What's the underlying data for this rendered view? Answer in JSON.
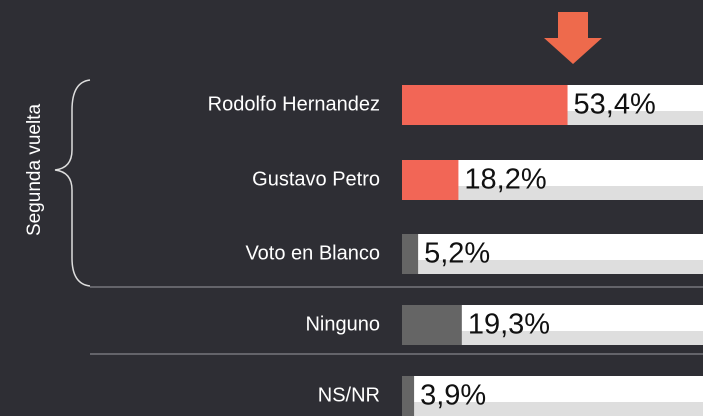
{
  "chart_data": {
    "type": "bar",
    "orientation": "horizontal",
    "annotation": "Segunda vuelta",
    "categories": [
      "Rodolfo Hernandez",
      "Gustavo Petro",
      "Voto en Blanco",
      "Ninguno",
      "NS/NR"
    ],
    "values": [
      53.4,
      18.2,
      5.2,
      19.3,
      3.9
    ],
    "value_labels": [
      "53,4%",
      "18,2%",
      "5,2%",
      "19,3%",
      "3,9%"
    ],
    "colors": [
      "#f26656",
      "#f26656",
      "#656565",
      "#656565",
      "#656565"
    ],
    "xlim": [
      0,
      100
    ]
  }
}
